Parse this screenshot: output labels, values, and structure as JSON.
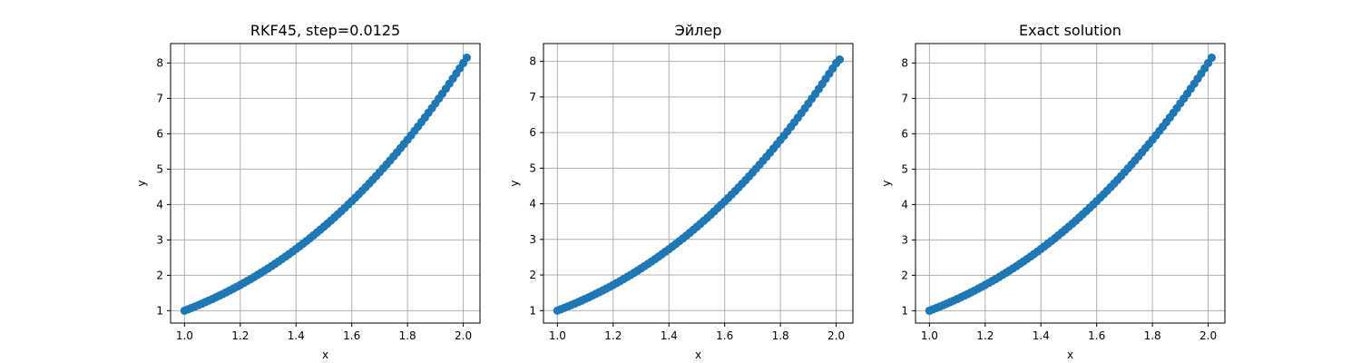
{
  "chart_data": [
    {
      "type": "scatter",
      "title": "RKF45, step=0.0125",
      "xlabel": "x",
      "ylabel": "y",
      "xlim": [
        0.95,
        2.06
      ],
      "ylim": [
        0.65,
        8.55
      ],
      "xticks": [
        1.0,
        1.2,
        1.4,
        1.6,
        1.8,
        2.0
      ],
      "xtick_labels": [
        "1.0",
        "1.2",
        "1.4",
        "1.6",
        "1.8",
        "2.0"
      ],
      "yticks": [
        1,
        2,
        3,
        4,
        5,
        6,
        7,
        8
      ],
      "ytick_labels": [
        "1",
        "2",
        "3",
        "4",
        "5",
        "6",
        "7",
        "8"
      ],
      "grid": true,
      "color": "#1f77b4",
      "series": [
        {
          "x": [
            1.0,
            1.0125,
            1.025,
            1.0375,
            1.05,
            1.0625,
            1.075,
            1.0875,
            1.1,
            1.1125,
            1.125,
            1.1375,
            1.15,
            1.1625,
            1.175,
            1.1875,
            1.2,
            1.2125,
            1.225,
            1.2375,
            1.25,
            1.2625,
            1.275,
            1.2875,
            1.3,
            1.3125,
            1.325,
            1.3375,
            1.35,
            1.3625,
            1.375,
            1.3875,
            1.4,
            1.4125,
            1.425,
            1.4375,
            1.45,
            1.4625,
            1.475,
            1.4875,
            1.5,
            1.5125,
            1.525,
            1.5375,
            1.55,
            1.5625,
            1.575,
            1.5875,
            1.6,
            1.6125,
            1.625,
            1.6375,
            1.65,
            1.6625,
            1.675,
            1.6875,
            1.7,
            1.7125,
            1.725,
            1.7375,
            1.75,
            1.7625,
            1.775,
            1.7875,
            1.8,
            1.8125,
            1.825,
            1.8375,
            1.85,
            1.8625,
            1.875,
            1.8875,
            1.9,
            1.9125,
            1.925,
            1.9375,
            1.95,
            1.9625,
            1.975,
            1.9875,
            2.0,
            2.0125
          ],
          "y": [
            1.0,
            1.038,
            1.077,
            1.117,
            1.158,
            1.2,
            1.243,
            1.287,
            1.331,
            1.377,
            1.424,
            1.472,
            1.521,
            1.572,
            1.623,
            1.675,
            1.728,
            1.783,
            1.839,
            1.895,
            1.953,
            2.012,
            2.073,
            2.134,
            2.197,
            2.261,
            2.326,
            2.393,
            2.46,
            2.53,
            2.6,
            2.671,
            2.744,
            2.818,
            2.894,
            2.97,
            3.048,
            3.128,
            3.209,
            3.291,
            3.375,
            3.46,
            3.546,
            3.634,
            3.724,
            3.815,
            3.907,
            4.001,
            4.096,
            4.193,
            4.291,
            4.391,
            4.492,
            4.595,
            4.699,
            4.805,
            4.913,
            5.022,
            5.133,
            5.245,
            5.359,
            5.475,
            5.593,
            5.712,
            5.832,
            5.954,
            6.078,
            6.204,
            6.332,
            6.461,
            6.592,
            6.724,
            6.859,
            6.995,
            7.133,
            7.273,
            7.415,
            7.558,
            7.703,
            7.851,
            8.0,
            8.151
          ]
        }
      ]
    },
    {
      "type": "scatter",
      "title": "Эйлер",
      "xlabel": "x",
      "ylabel": "y",
      "xlim": [
        0.95,
        2.06
      ],
      "ylim": [
        0.65,
        8.5
      ],
      "xticks": [
        1.0,
        1.2,
        1.4,
        1.6,
        1.8,
        2.0
      ],
      "xtick_labels": [
        "1.0",
        "1.2",
        "1.4",
        "1.6",
        "1.8",
        "2.0"
      ],
      "yticks": [
        1,
        2,
        3,
        4,
        5,
        6,
        7,
        8
      ],
      "ytick_labels": [
        "1",
        "2",
        "3",
        "4",
        "5",
        "6",
        "7",
        "8"
      ],
      "grid": true,
      "color": "#1f77b4",
      "series": [
        {
          "x": [
            1.0,
            1.0125,
            1.025,
            1.0375,
            1.05,
            1.0625,
            1.075,
            1.0875,
            1.1,
            1.1125,
            1.125,
            1.1375,
            1.15,
            1.1625,
            1.175,
            1.1875,
            1.2,
            1.2125,
            1.225,
            1.2375,
            1.25,
            1.2625,
            1.275,
            1.2875,
            1.3,
            1.3125,
            1.325,
            1.3375,
            1.35,
            1.3625,
            1.375,
            1.3875,
            1.4,
            1.4125,
            1.425,
            1.4375,
            1.45,
            1.4625,
            1.475,
            1.4875,
            1.5,
            1.5125,
            1.525,
            1.5375,
            1.55,
            1.5625,
            1.575,
            1.5875,
            1.6,
            1.6125,
            1.625,
            1.6375,
            1.65,
            1.6625,
            1.675,
            1.6875,
            1.7,
            1.7125,
            1.725,
            1.7375,
            1.75,
            1.7625,
            1.775,
            1.7875,
            1.8,
            1.8125,
            1.825,
            1.8375,
            1.85,
            1.8625,
            1.875,
            1.8875,
            1.9,
            1.9125,
            1.925,
            1.9375,
            1.95,
            1.9625,
            1.975,
            1.9875,
            2.0,
            2.0125
          ],
          "y": [
            1.0,
            1.038,
            1.076,
            1.116,
            1.156,
            1.198,
            1.24,
            1.284,
            1.328,
            1.374,
            1.42,
            1.468,
            1.516,
            1.566,
            1.617,
            1.668,
            1.721,
            1.775,
            1.83,
            1.886,
            1.944,
            2.002,
            2.062,
            2.123,
            2.185,
            2.248,
            2.313,
            2.378,
            2.445,
            2.514,
            2.583,
            2.654,
            2.726,
            2.8,
            2.874,
            2.95,
            3.028,
            3.106,
            3.186,
            3.268,
            3.351,
            3.435,
            3.521,
            3.608,
            3.697,
            3.787,
            3.879,
            3.972,
            4.066,
            4.162,
            4.26,
            4.359,
            4.459,
            4.562,
            4.665,
            4.771,
            4.878,
            4.986,
            5.096,
            5.208,
            5.321,
            5.436,
            5.553,
            5.671,
            5.791,
            5.913,
            6.036,
            6.161,
            6.288,
            6.416,
            6.546,
            6.678,
            6.812,
            6.948,
            7.085,
            7.224,
            7.365,
            7.508,
            7.653,
            7.799,
            7.948,
            8.05
          ]
        }
      ]
    },
    {
      "type": "scatter",
      "title": "Exact solution",
      "xlabel": "x",
      "ylabel": "y",
      "xlim": [
        0.95,
        2.06
      ],
      "ylim": [
        0.65,
        8.55
      ],
      "xticks": [
        1.0,
        1.2,
        1.4,
        1.6,
        1.8,
        2.0
      ],
      "xtick_labels": [
        "1.0",
        "1.2",
        "1.4",
        "1.6",
        "1.8",
        "2.0"
      ],
      "yticks": [
        1,
        2,
        3,
        4,
        5,
        6,
        7,
        8
      ],
      "ytick_labels": [
        "1",
        "2",
        "3",
        "4",
        "5",
        "6",
        "7",
        "8"
      ],
      "grid": true,
      "color": "#1f77b4",
      "series": [
        {
          "x": [
            1.0,
            1.0125,
            1.025,
            1.0375,
            1.05,
            1.0625,
            1.075,
            1.0875,
            1.1,
            1.1125,
            1.125,
            1.1375,
            1.15,
            1.1625,
            1.175,
            1.1875,
            1.2,
            1.2125,
            1.225,
            1.2375,
            1.25,
            1.2625,
            1.275,
            1.2875,
            1.3,
            1.3125,
            1.325,
            1.3375,
            1.35,
            1.3625,
            1.375,
            1.3875,
            1.4,
            1.4125,
            1.425,
            1.4375,
            1.45,
            1.4625,
            1.475,
            1.4875,
            1.5,
            1.5125,
            1.525,
            1.5375,
            1.55,
            1.5625,
            1.575,
            1.5875,
            1.6,
            1.6125,
            1.625,
            1.6375,
            1.65,
            1.6625,
            1.675,
            1.6875,
            1.7,
            1.7125,
            1.725,
            1.7375,
            1.75,
            1.7625,
            1.775,
            1.7875,
            1.8,
            1.8125,
            1.825,
            1.8375,
            1.85,
            1.8625,
            1.875,
            1.8875,
            1.9,
            1.9125,
            1.925,
            1.9375,
            1.95,
            1.9625,
            1.975,
            1.9875,
            2.0,
            2.0125
          ],
          "y": [
            1.0,
            1.038,
            1.077,
            1.117,
            1.158,
            1.2,
            1.243,
            1.287,
            1.331,
            1.377,
            1.424,
            1.472,
            1.521,
            1.572,
            1.623,
            1.675,
            1.728,
            1.783,
            1.839,
            1.895,
            1.953,
            2.012,
            2.073,
            2.134,
            2.197,
            2.261,
            2.326,
            2.393,
            2.46,
            2.53,
            2.6,
            2.671,
            2.744,
            2.818,
            2.894,
            2.97,
            3.048,
            3.128,
            3.209,
            3.291,
            3.375,
            3.46,
            3.546,
            3.634,
            3.724,
            3.815,
            3.907,
            4.001,
            4.096,
            4.193,
            4.291,
            4.391,
            4.492,
            4.595,
            4.699,
            4.805,
            4.913,
            5.022,
            5.133,
            5.245,
            5.359,
            5.475,
            5.593,
            5.712,
            5.832,
            5.954,
            6.078,
            6.204,
            6.332,
            6.461,
            6.592,
            6.724,
            6.859,
            6.995,
            7.133,
            7.273,
            7.415,
            7.558,
            7.703,
            7.851,
            8.0,
            8.151
          ]
        }
      ]
    }
  ]
}
